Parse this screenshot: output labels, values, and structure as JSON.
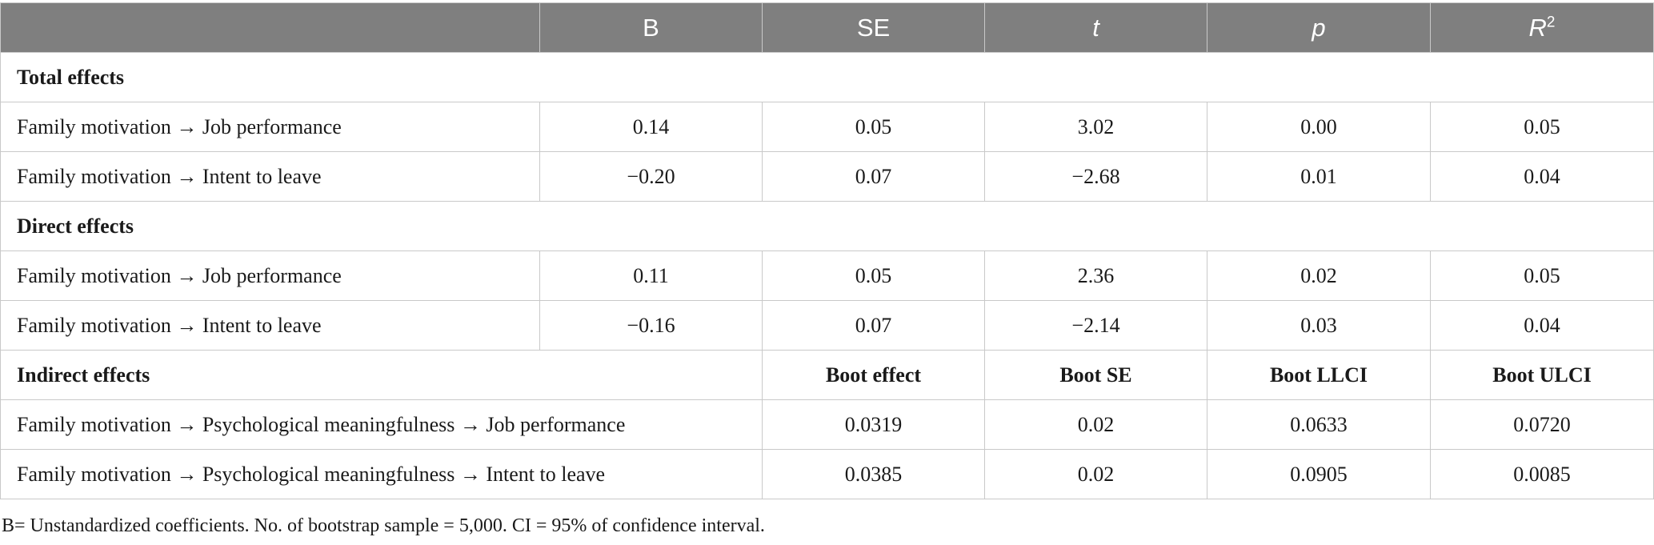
{
  "header": {
    "col0": "",
    "b": "B",
    "se": "SE",
    "t": "t",
    "p": "p",
    "r2_base": "R",
    "r2_sup": "2"
  },
  "total": {
    "title": "Total effects",
    "rows": [
      {
        "label": "Family motivation → Job performance",
        "b": "0.14",
        "se": "0.05",
        "t": "3.02",
        "p": "0.00",
        "r2": "0.05"
      },
      {
        "label": "Family motivation → Intent to leave",
        "b": "−0.20",
        "se": "0.07",
        "t": "−2.68",
        "p": "0.01",
        "r2": "0.04"
      }
    ]
  },
  "direct": {
    "title": "Direct effects",
    "rows": [
      {
        "label": "Family motivation → Job performance",
        "b": "0.11",
        "se": "0.05",
        "t": "2.36",
        "p": "0.02",
        "r2": "0.05"
      },
      {
        "label": "Family motivation → Intent to leave",
        "b": "−0.16",
        "se": "0.07",
        "t": "−2.14",
        "p": "0.03",
        "r2": "0.04"
      }
    ]
  },
  "indirect": {
    "title": "Indirect effects",
    "headers": {
      "effect": "Boot effect",
      "se": "Boot SE",
      "llci": "Boot LLCI",
      "ulci": "Boot ULCI"
    },
    "rows": [
      {
        "label": "Family motivation → Psychological meaningfulness → Job performance",
        "effect": "0.0319",
        "se": "0.02",
        "llci": "0.0633",
        "ulci": "0.0720"
      },
      {
        "label": "Family motivation → Psychological meaningfulness → Intent to leave",
        "effect": "0.0385",
        "se": "0.02",
        "llci": "0.0905",
        "ulci": "0.0085"
      }
    ]
  },
  "footnote": "B= Unstandardized coefficients. No. of bootstrap sample = 5,000. CI = 95% of confidence interval."
}
